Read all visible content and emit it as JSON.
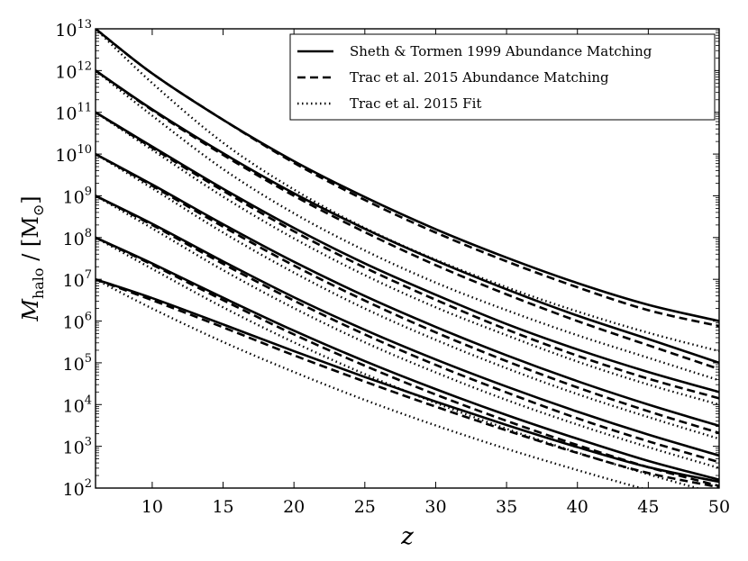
{
  "chart_data": {
    "type": "line",
    "xlabel": "z",
    "ylabel_main": "M",
    "ylabel_sub": "halo",
    "ylabel_unit": " / [M",
    "ylabel_unit_sub": "⊙",
    "ylabel_unit_close": "]",
    "xlim": [
      6,
      50
    ],
    "ylim_log10": [
      2,
      13
    ],
    "y_scale": "log",
    "grid": false,
    "legend_position": "top-right",
    "x_ticks": [
      10,
      15,
      20,
      25,
      30,
      35,
      40,
      45,
      50
    ],
    "x_tick_labels": [
      "10",
      "15",
      "20",
      "25",
      "30",
      "35",
      "40",
      "45",
      "50"
    ],
    "y_tick_exponents": [
      2,
      3,
      4,
      5,
      6,
      7,
      8,
      9,
      10,
      11,
      12,
      13
    ],
    "y_tick_labels": [
      "10",
      "10",
      "10",
      "10",
      "10",
      "10",
      "10",
      "10",
      "10",
      "10",
      "10",
      "10"
    ],
    "y_tick_sup": [
      "2",
      "3",
      "4",
      "5",
      "6",
      "7",
      "8",
      "9",
      "10",
      "11",
      "12",
      "13"
    ],
    "x": [
      6,
      10,
      15,
      20,
      25,
      30,
      35,
      40,
      45,
      50
    ],
    "legend": [
      {
        "label": "Sheth & Tormen 1999 Abundance Matching",
        "style": "solid"
      },
      {
        "label": "Trac et al. 2015 Abundance Matching",
        "style": "dashed"
      },
      {
        "label": "Trac et al. 2015 Fit",
        "style": "dotted"
      }
    ],
    "series": [
      {
        "group": 1,
        "style": "solid",
        "log10_mass": [
          13,
          11.93,
          10.82,
          9.83,
          8.97,
          8.2,
          7.52,
          6.91,
          6.39,
          6.0
        ]
      },
      {
        "group": 1,
        "style": "dashed",
        "log10_mass": [
          13,
          11.93,
          10.82,
          9.79,
          8.9,
          8.12,
          7.43,
          6.81,
          6.26,
          5.88
        ]
      },
      {
        "group": 1,
        "style": "dotted",
        "log10_mass": [
          13,
          11.7,
          10.27,
          9.15,
          8.23,
          7.47,
          6.81,
          6.23,
          5.72,
          5.28
        ]
      },
      {
        "group": 2,
        "style": "solid",
        "log10_mass": [
          12,
          11.07,
          10.02,
          9.06,
          8.21,
          7.45,
          6.76,
          6.13,
          5.57,
          5.0
        ]
      },
      {
        "group": 2,
        "style": "dashed",
        "log10_mass": [
          12,
          11.05,
          9.98,
          9.0,
          8.13,
          7.34,
          6.64,
          6.0,
          5.42,
          4.85
        ]
      },
      {
        "group": 2,
        "style": "dotted",
        "log10_mass": [
          12,
          10.92,
          9.64,
          8.58,
          7.69,
          6.92,
          6.26,
          5.66,
          5.12,
          4.58
        ]
      },
      {
        "group": 3,
        "style": "solid",
        "log10_mass": [
          11,
          10.18,
          9.17,
          8.23,
          7.38,
          6.63,
          5.93,
          5.32,
          4.78,
          4.3
        ]
      },
      {
        "group": 3,
        "style": "dashed",
        "log10_mass": [
          11,
          10.15,
          9.12,
          8.15,
          7.28,
          6.51,
          5.8,
          5.17,
          4.62,
          4.15
        ]
      },
      {
        "group": 3,
        "style": "dotted",
        "log10_mass": [
          11,
          10.1,
          8.98,
          7.98,
          7.1,
          6.33,
          5.66,
          5.03,
          4.48,
          4.0
        ]
      },
      {
        "group": 4,
        "style": "solid",
        "log10_mass": [
          10,
          9.27,
          8.32,
          7.42,
          6.6,
          5.86,
          5.18,
          4.56,
          4.0,
          3.49
        ]
      },
      {
        "group": 4,
        "style": "dashed",
        "log10_mass": [
          10,
          9.24,
          8.26,
          7.33,
          6.49,
          5.73,
          5.04,
          4.41,
          3.84,
          3.32
        ]
      },
      {
        "group": 4,
        "style": "dotted",
        "log10_mass": [
          10,
          9.18,
          8.12,
          7.16,
          6.3,
          5.55,
          4.87,
          4.25,
          3.7,
          3.18
        ]
      },
      {
        "group": 5,
        "style": "solid",
        "log10_mass": [
          9,
          8.33,
          7.43,
          6.57,
          5.79,
          5.08,
          4.43,
          3.83,
          3.28,
          2.78
        ]
      },
      {
        "group": 5,
        "style": "dashed",
        "log10_mass": [
          9,
          8.3,
          7.37,
          6.49,
          5.68,
          4.95,
          4.29,
          3.67,
          3.12,
          2.62
        ]
      },
      {
        "group": 5,
        "style": "dotted",
        "log10_mass": [
          9,
          8.22,
          7.22,
          6.31,
          5.49,
          4.77,
          4.11,
          3.52,
          2.98,
          2.48
        ]
      },
      {
        "group": 6,
        "style": "solid",
        "log10_mass": [
          8,
          7.38,
          6.56,
          5.77,
          5.04,
          4.37,
          3.75,
          3.18,
          2.65,
          2.2
        ]
      },
      {
        "group": 6,
        "style": "dashed",
        "log10_mass": [
          8,
          7.35,
          6.5,
          5.68,
          4.93,
          4.24,
          3.61,
          3.03,
          2.5,
          2.05
        ]
      },
      {
        "group": 6,
        "style": "dotted",
        "log10_mass": [
          8,
          7.25,
          6.33,
          5.49,
          4.73,
          4.04,
          3.42,
          2.85,
          2.33,
          1.85
        ]
      },
      {
        "group": 7,
        "style": "solid",
        "log10_mass": [
          7,
          6.55,
          5.92,
          5.28,
          4.66,
          4.07,
          3.51,
          2.98,
          2.5,
          2.15
        ]
      },
      {
        "group": 7,
        "style": "dashed",
        "log10_mass": [
          7,
          6.5,
          5.85,
          5.18,
          4.55,
          3.95,
          3.38,
          2.84,
          2.36,
          2.02
        ]
      },
      {
        "group": 7,
        "style": "dotted",
        "log10_mass": [
          7,
          6.3,
          5.5,
          4.78,
          4.11,
          3.5,
          2.94,
          2.43,
          1.95,
          1.5
        ]
      }
    ]
  }
}
